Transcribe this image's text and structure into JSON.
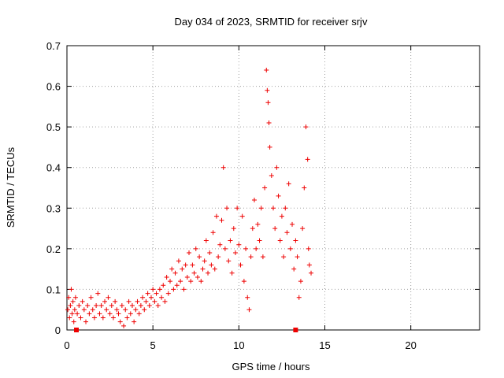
{
  "chart_data": {
    "type": "scatter",
    "title": "Day 034 of 2023, SRMTID for receiver srjv",
    "xlabel": "GPS time / hours",
    "ylabel": "SRMTID / TECUs",
    "xlim": [
      0,
      24
    ],
    "ylim": [
      0,
      0.7
    ],
    "x_ticks": [
      0,
      5,
      10,
      15,
      20
    ],
    "x_tick_labels": [
      "0",
      "5",
      "10",
      "15",
      "20"
    ],
    "y_ticks": [
      0,
      0.1,
      0.2,
      0.3,
      0.4,
      0.5,
      0.6,
      0.7
    ],
    "y_tick_labels": [
      "0",
      "0.1",
      "0.2",
      "0.3",
      "0.4",
      "0.5",
      "0.6",
      "0.7"
    ],
    "grid": true,
    "marker": "+",
    "series_color": "#ee0000",
    "series": [
      {
        "name": "SRMTID",
        "points": [
          [
            0.05,
            0.05
          ],
          [
            0.1,
            0.08
          ],
          [
            0.15,
            0.03
          ],
          [
            0.2,
            0.06
          ],
          [
            0.25,
            0.1
          ],
          [
            0.3,
            0.04
          ],
          [
            0.35,
            0.07
          ],
          [
            0.4,
            0.02
          ],
          [
            0.45,
            0.05
          ],
          [
            0.5,
            0.08
          ],
          [
            0.6,
            0.04
          ],
          [
            0.7,
            0.06
          ],
          [
            0.8,
            0.03
          ],
          [
            0.9,
            0.07
          ],
          [
            1.0,
            0.05
          ],
          [
            1.1,
            0.02
          ],
          [
            1.2,
            0.06
          ],
          [
            1.3,
            0.04
          ],
          [
            1.4,
            0.08
          ],
          [
            1.5,
            0.05
          ],
          [
            1.6,
            0.03
          ],
          [
            1.7,
            0.06
          ],
          [
            1.8,
            0.09
          ],
          [
            1.9,
            0.04
          ],
          [
            2.0,
            0.06
          ],
          [
            2.1,
            0.03
          ],
          [
            2.2,
            0.07
          ],
          [
            2.3,
            0.05
          ],
          [
            2.4,
            0.08
          ],
          [
            2.5,
            0.04
          ],
          [
            2.6,
            0.06
          ],
          [
            2.7,
            0.03
          ],
          [
            2.8,
            0.07
          ],
          [
            2.9,
            0.05
          ],
          [
            3.0,
            0.04
          ],
          [
            3.1,
            0.02
          ],
          [
            3.2,
            0.06
          ],
          [
            3.3,
            0.01
          ],
          [
            3.4,
            0.05
          ],
          [
            3.5,
            0.03
          ],
          [
            3.6,
            0.07
          ],
          [
            3.7,
            0.04
          ],
          [
            3.8,
            0.06
          ],
          [
            3.9,
            0.02
          ],
          [
            4.0,
            0.05
          ],
          [
            4.1,
            0.07
          ],
          [
            4.2,
            0.04
          ],
          [
            4.3,
            0.06
          ],
          [
            4.4,
            0.08
          ],
          [
            4.5,
            0.05
          ],
          [
            4.6,
            0.07
          ],
          [
            4.7,
            0.09
          ],
          [
            4.8,
            0.06
          ],
          [
            4.9,
            0.08
          ],
          [
            5.0,
            0.1
          ],
          [
            5.1,
            0.07
          ],
          [
            5.2,
            0.09
          ],
          [
            5.3,
            0.06
          ],
          [
            5.4,
            0.1
          ],
          [
            5.5,
            0.08
          ],
          [
            5.6,
            0.11
          ],
          [
            5.7,
            0.07
          ],
          [
            5.8,
            0.13
          ],
          [
            5.9,
            0.09
          ],
          [
            6.0,
            0.12
          ],
          [
            6.1,
            0.15
          ],
          [
            6.2,
            0.1
          ],
          [
            6.3,
            0.14
          ],
          [
            6.4,
            0.11
          ],
          [
            6.5,
            0.17
          ],
          [
            6.6,
            0.12
          ],
          [
            6.7,
            0.15
          ],
          [
            6.8,
            0.1
          ],
          [
            6.9,
            0.16
          ],
          [
            7.0,
            0.13
          ],
          [
            7.1,
            0.19
          ],
          [
            7.2,
            0.12
          ],
          [
            7.3,
            0.16
          ],
          [
            7.4,
            0.14
          ],
          [
            7.5,
            0.2
          ],
          [
            7.6,
            0.13
          ],
          [
            7.7,
            0.18
          ],
          [
            7.8,
            0.12
          ],
          [
            7.9,
            0.15
          ],
          [
            8.0,
            0.17
          ],
          [
            8.1,
            0.22
          ],
          [
            8.2,
            0.14
          ],
          [
            8.3,
            0.19
          ],
          [
            8.4,
            0.16
          ],
          [
            8.5,
            0.24
          ],
          [
            8.6,
            0.15
          ],
          [
            8.7,
            0.28
          ],
          [
            8.8,
            0.18
          ],
          [
            8.9,
            0.21
          ],
          [
            9.0,
            0.27
          ],
          [
            9.1,
            0.4
          ],
          [
            9.2,
            0.2
          ],
          [
            9.3,
            0.3
          ],
          [
            9.4,
            0.17
          ],
          [
            9.5,
            0.22
          ],
          [
            9.6,
            0.14
          ],
          [
            9.7,
            0.25
          ],
          [
            9.8,
            0.19
          ],
          [
            9.9,
            0.3
          ],
          [
            10.0,
            0.21
          ],
          [
            10.1,
            0.16
          ],
          [
            10.2,
            0.28
          ],
          [
            10.3,
            0.12
          ],
          [
            10.4,
            0.2
          ],
          [
            10.5,
            0.08
          ],
          [
            10.6,
            0.05
          ],
          [
            10.7,
            0.18
          ],
          [
            10.8,
            0.25
          ],
          [
            10.9,
            0.32
          ],
          [
            11.0,
            0.2
          ],
          [
            11.1,
            0.26
          ],
          [
            11.2,
            0.22
          ],
          [
            11.3,
            0.3
          ],
          [
            11.4,
            0.18
          ],
          [
            11.5,
            0.35
          ],
          [
            11.6,
            0.64
          ],
          [
            11.65,
            0.59
          ],
          [
            11.7,
            0.56
          ],
          [
            11.75,
            0.51
          ],
          [
            11.8,
            0.45
          ],
          [
            11.9,
            0.38
          ],
          [
            12.0,
            0.3
          ],
          [
            12.1,
            0.25
          ],
          [
            12.2,
            0.4
          ],
          [
            12.3,
            0.33
          ],
          [
            12.4,
            0.22
          ],
          [
            12.5,
            0.28
          ],
          [
            12.6,
            0.18
          ],
          [
            12.7,
            0.3
          ],
          [
            12.8,
            0.24
          ],
          [
            12.9,
            0.36
          ],
          [
            13.0,
            0.2
          ],
          [
            13.1,
            0.26
          ],
          [
            13.2,
            0.15
          ],
          [
            13.3,
            0.22
          ],
          [
            13.4,
            0.18
          ],
          [
            13.5,
            0.08
          ],
          [
            13.6,
            0.12
          ],
          [
            13.7,
            0.25
          ],
          [
            13.8,
            0.35
          ],
          [
            13.9,
            0.5
          ],
          [
            14.0,
            0.42
          ],
          [
            14.05,
            0.2
          ],
          [
            14.1,
            0.16
          ],
          [
            14.2,
            0.14
          ]
        ]
      }
    ],
    "bottom_markers_x": [
      0.55,
      13.3
    ]
  }
}
